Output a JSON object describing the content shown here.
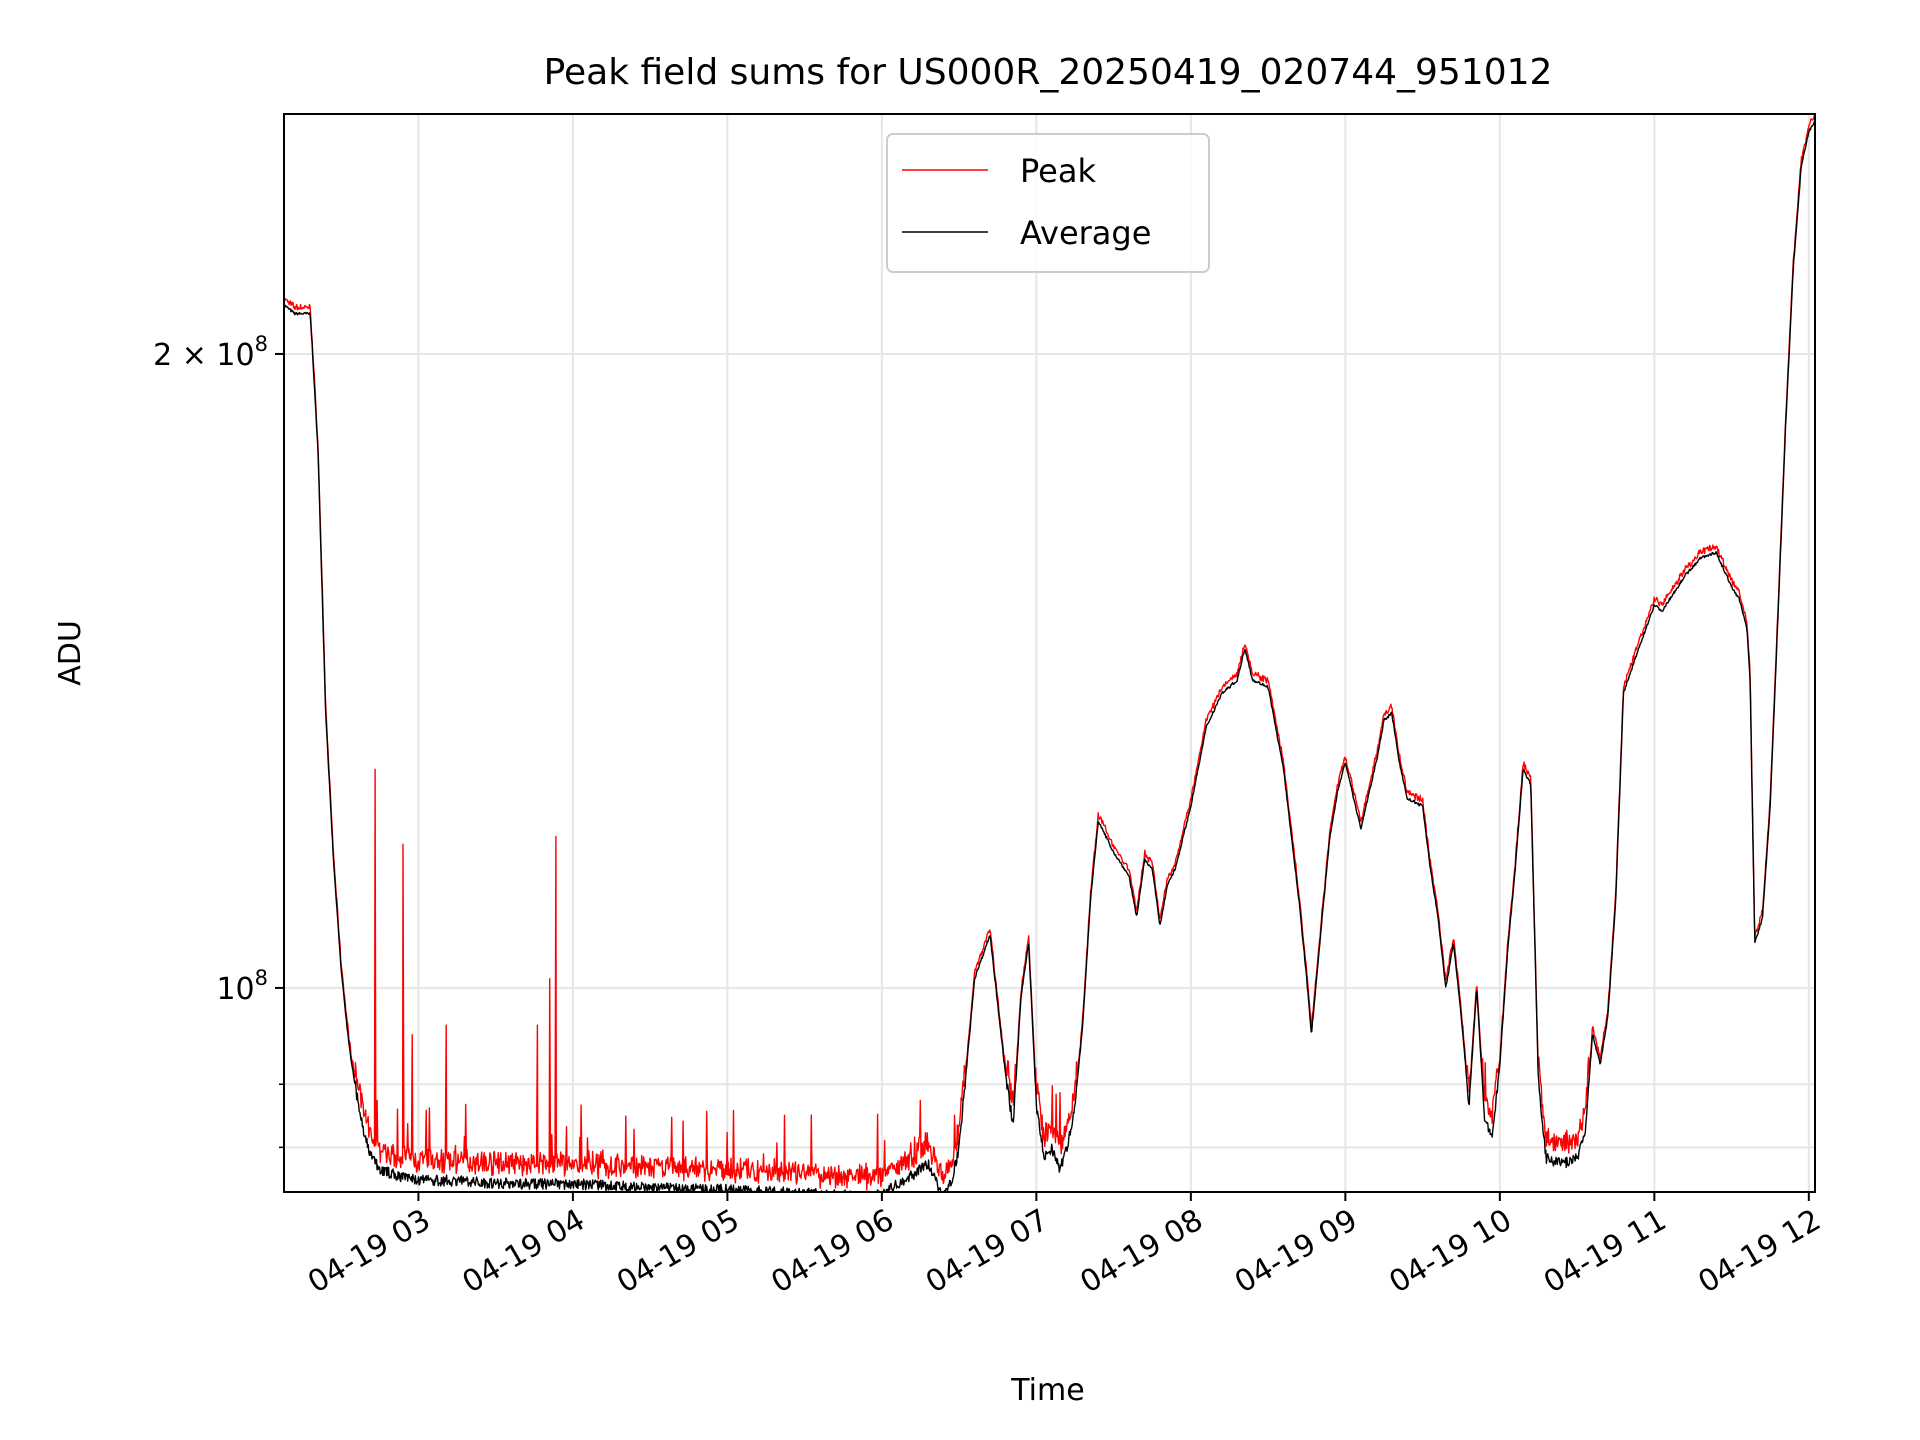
{
  "chart_data": {
    "type": "line",
    "title": "Peak field sums for US000R_20250419_020744_951012",
    "xlabel": "Time",
    "ylabel": "ADU",
    "yscale": "log",
    "ylim": [
      80000000,
      260000000
    ],
    "x_unit": "hours on 2025-04-19",
    "xlim": [
      2.13,
      12.04
    ],
    "x_ticks": [
      {
        "value": 3,
        "label": "04-19 03"
      },
      {
        "value": 4,
        "label": "04-19 04"
      },
      {
        "value": 5,
        "label": "04-19 05"
      },
      {
        "value": 6,
        "label": "04-19 06"
      },
      {
        "value": 7,
        "label": "04-19 07"
      },
      {
        "value": 8,
        "label": "04-19 08"
      },
      {
        "value": 9,
        "label": "04-19 09"
      },
      {
        "value": 10,
        "label": "04-19 10"
      },
      {
        "value": 11,
        "label": "04-19 11"
      },
      {
        "value": 12,
        "label": "04-19 12"
      }
    ],
    "y_ticks": [
      {
        "value": 100000000,
        "base": "10",
        "exp": "8",
        "mant": ""
      },
      {
        "value": 200000000,
        "base": "10",
        "exp": "8",
        "mant": "2 × "
      }
    ],
    "y_minor_ticks": [
      90000000,
      84000000,
      300000000
    ],
    "grid": true,
    "legend": {
      "position": "top-center",
      "entries": [
        "Peak",
        "Average"
      ]
    },
    "series": [
      {
        "name": "Average",
        "color": "#000000",
        "x": [
          2.13,
          2.2,
          2.3,
          2.35,
          2.4,
          2.45,
          2.5,
          2.55,
          2.6,
          2.65,
          2.7,
          2.75,
          2.85,
          3.0,
          3.2,
          3.5,
          3.8,
          4.0,
          4.3,
          4.6,
          5.0,
          5.3,
          5.6,
          5.9,
          6.0,
          6.2,
          6.3,
          6.35,
          6.4,
          6.45,
          6.5,
          6.55,
          6.6,
          6.7,
          6.8,
          6.85,
          6.9,
          6.95,
          7.0,
          7.05,
          7.1,
          7.15,
          7.2,
          7.25,
          7.3,
          7.35,
          7.4,
          7.5,
          7.6,
          7.65,
          7.7,
          7.75,
          7.8,
          7.85,
          7.9,
          8.0,
          8.1,
          8.2,
          8.3,
          8.35,
          8.4,
          8.5,
          8.6,
          8.7,
          8.75,
          8.78,
          8.85,
          8.9,
          8.95,
          9.0,
          9.1,
          9.2,
          9.25,
          9.3,
          9.35,
          9.4,
          9.5,
          9.55,
          9.6,
          9.65,
          9.7,
          9.75,
          9.8,
          9.85,
          9.9,
          9.95,
          10.0,
          10.05,
          10.1,
          10.15,
          10.2,
          10.25,
          10.3,
          10.4,
          10.5,
          10.55,
          10.6,
          10.65,
          10.7,
          10.75,
          10.8,
          10.9,
          11.0,
          11.05,
          11.1,
          11.2,
          11.3,
          11.4,
          11.5,
          11.55,
          11.6,
          11.62,
          11.65,
          11.7,
          11.75,
          11.8,
          11.85,
          11.9,
          11.95,
          12.0,
          12.04
        ],
        "y": [
          211000000,
          209000000,
          209000000,
          180000000,
          135000000,
          115000000,
          102000000,
          94000000,
          89000000,
          85000000,
          83000000,
          82000000,
          81500000,
          81000000,
          81000000,
          80800000,
          80700000,
          80700000,
          80500000,
          80300000,
          80200000,
          80000000,
          79800000,
          79600000,
          79800000,
          81500000,
          82500000,
          81000000,
          79500000,
          81000000,
          84000000,
          92000000,
          101000000,
          106000000,
          91000000,
          86000000,
          99000000,
          105000000,
          88000000,
          83000000,
          84000000,
          82000000,
          84000000,
          88000000,
          96000000,
          110000000,
          120000000,
          116000000,
          113000000,
          108000000,
          115000000,
          114000000,
          107000000,
          112000000,
          114000000,
          122000000,
          133000000,
          138000000,
          140000000,
          145000000,
          140000000,
          139000000,
          127000000,
          110000000,
          101000000,
          95000000,
          108000000,
          118000000,
          124000000,
          128000000,
          119000000,
          128000000,
          134000000,
          135000000,
          128000000,
          123000000,
          122000000,
          114000000,
          108000000,
          100000000,
          105000000,
          97000000,
          88000000,
          100000000,
          87000000,
          85000000,
          92000000,
          104000000,
          114000000,
          127000000,
          125000000,
          90000000,
          83000000,
          82500000,
          83000000,
          85000000,
          95000000,
          92000000,
          97000000,
          110000000,
          138000000,
          145000000,
          152000000,
          151000000,
          153000000,
          157000000,
          160000000,
          161000000,
          155000000,
          153000000,
          148000000,
          140000000,
          105000000,
          108000000,
          122000000,
          150000000,
          185000000,
          220000000,
          245000000,
          255000000,
          258000000
        ]
      },
      {
        "name": "Peak",
        "color": "#ff0000"
      }
    ],
    "peak_spikes": [
      {
        "x": 2.72,
        "y": 127000000
      },
      {
        "x": 2.9,
        "y": 117000000
      },
      {
        "x": 2.96,
        "y": 95000000
      },
      {
        "x": 3.18,
        "y": 96000000
      },
      {
        "x": 3.77,
        "y": 96000000
      },
      {
        "x": 3.85,
        "y": 101000000
      },
      {
        "x": 3.89,
        "y": 118000000
      },
      {
        "x": 5.37,
        "y": 87000000
      },
      {
        "x": 6.47,
        "y": 87000000
      }
    ]
  }
}
